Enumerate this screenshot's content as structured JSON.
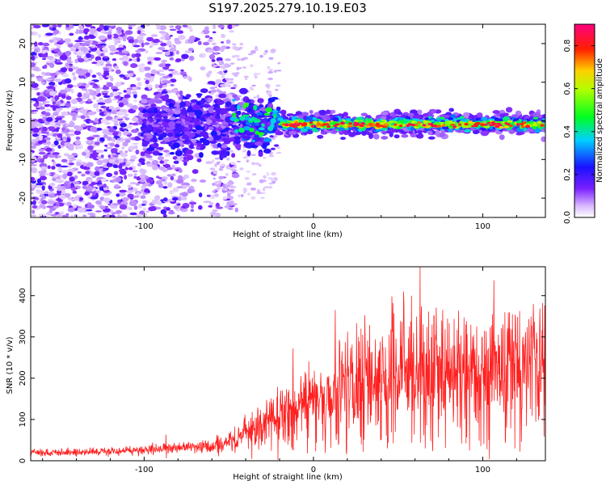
{
  "title": "S197.2025.279.10.19.E03",
  "chart_data": [
    {
      "type": "heatmap",
      "name": "spectrogram",
      "xlabel": "Height of straight line (km)",
      "ylabel": "Frequency (Hz)",
      "xlim": [
        -167,
        137
      ],
      "ylim": [
        -25,
        25
      ],
      "xticks": [
        -100,
        0,
        100
      ],
      "xtick_labels": [
        "-100",
        "0",
        "100"
      ],
      "yticks": [
        -20,
        -10,
        0,
        10,
        20
      ],
      "ytick_labels": [
        "-20",
        "-10",
        "0",
        "10",
        "20"
      ],
      "colorbar": {
        "label": "Normalized spectral amplitude",
        "range": [
          0,
          0.9
        ],
        "ticks": [
          0.0,
          0.2,
          0.4,
          0.6,
          0.8
        ],
        "tick_labels": [
          "0.0",
          "0.2",
          "0.4",
          "0.6",
          "0.8"
        ],
        "colormap": "rainbow (white-violet-blue-cyan-green-yellow-red-magenta)"
      },
      "features": [
        {
          "x_range": [
            -167,
            -60
          ],
          "freq_range": [
            -25,
            25
          ],
          "amplitude": "low (0.05-0.15), scattered noise"
        },
        {
          "x_range": [
            -60,
            -20
          ],
          "freq_range": [
            -10,
            6
          ],
          "amplitude": "0.1-0.3, noisy"
        },
        {
          "x_range": [
            -20,
            137
          ],
          "freq_center": -1,
          "freq_halfwidth": 2,
          "amplitude": "0.6-0.9, strong narrow band"
        }
      ]
    },
    {
      "type": "line",
      "name": "snr",
      "xlabel": "Height of straight line (km)",
      "ylabel": "SNR (10 * v/v)",
      "xlim": [
        -167,
        137
      ],
      "ylim": [
        0,
        470
      ],
      "xticks": [
        -100,
        0,
        100
      ],
      "xtick_labels": [
        "-100",
        "0",
        "100"
      ],
      "yticks": [
        0,
        100,
        200,
        300,
        400
      ],
      "ytick_labels": [
        "0",
        "100",
        "200",
        "300",
        "400"
      ],
      "line_color": "#ff2020",
      "trend": [
        {
          "x": -167,
          "y": 20
        },
        {
          "x": -120,
          "y": 22
        },
        {
          "x": -85,
          "y": 30
        },
        {
          "x": -60,
          "y": 35
        },
        {
          "x": -40,
          "y": 60
        },
        {
          "x": -25,
          "y": 100
        },
        {
          "x": -10,
          "y": 130
        },
        {
          "x": 10,
          "y": 170
        },
        {
          "x": 30,
          "y": 200
        },
        {
          "x": 60,
          "y": 220
        },
        {
          "x": 90,
          "y": 210
        },
        {
          "x": 137,
          "y": 220
        }
      ],
      "peaks": [
        {
          "x": -87,
          "y": 63
        },
        {
          "x": -12,
          "y": 272
        },
        {
          "x": 28,
          "y": 320
        },
        {
          "x": 47,
          "y": 382
        },
        {
          "x": 58,
          "y": 400
        },
        {
          "x": 63,
          "y": 470
        },
        {
          "x": 70,
          "y": 330
        },
        {
          "x": 90,
          "y": 330
        },
        {
          "x": 113,
          "y": 360
        }
      ]
    }
  ]
}
